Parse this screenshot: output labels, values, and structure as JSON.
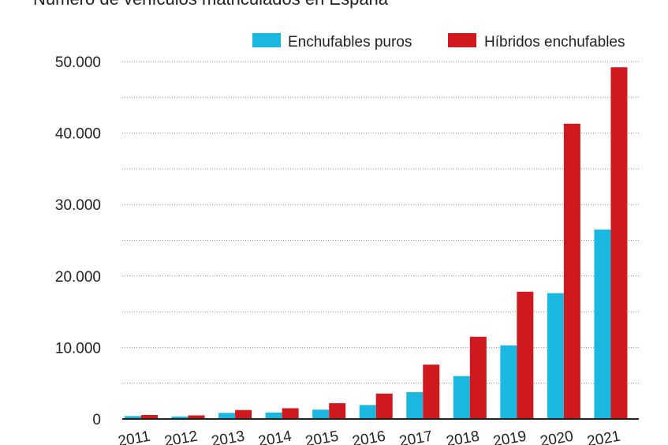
{
  "chart_data": {
    "type": "bar",
    "title": "Número de vehículos matriculados en España",
    "xlabel": "",
    "ylabel": "",
    "categories": [
      "2011",
      "2012",
      "2013",
      "2014",
      "2015",
      "2016",
      "2017",
      "2018",
      "2019",
      "2020",
      "2021"
    ],
    "series": [
      {
        "name": "Enchufables puros",
        "color": "#1ab7e0",
        "values": [
          400,
          350,
          850,
          900,
          1300,
          1950,
          3750,
          6000,
          10300,
          17600,
          26500
        ]
      },
      {
        "name": "Híbridos enchufables",
        "color": "#d0191f",
        "values": [
          550,
          500,
          1250,
          1500,
          2200,
          3550,
          7600,
          11500,
          17800,
          41300,
          49200
        ]
      }
    ],
    "ylim": [
      0,
      50000
    ],
    "yticks": [
      0,
      10000,
      20000,
      30000,
      40000,
      50000
    ],
    "ytick_labels": [
      "0",
      "10.000",
      "20.000",
      "30.000",
      "40.000",
      "50.000"
    ],
    "grid": true,
    "legend_position": "top-right"
  }
}
